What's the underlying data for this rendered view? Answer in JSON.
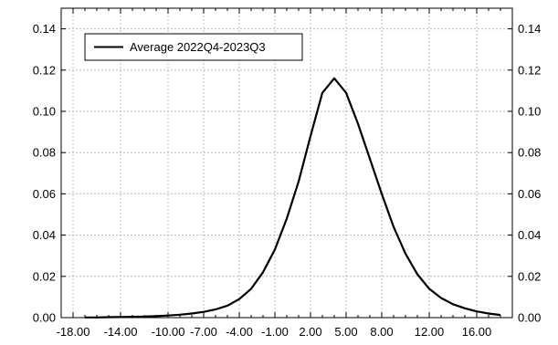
{
  "chart_data": {
    "type": "line",
    "series": [
      {
        "name": "Average 2022Q4-2023Q3",
        "color": "#000000",
        "x": [
          -17.0,
          -16.0,
          -15.0,
          -14.0,
          -13.0,
          -12.0,
          -11.0,
          -10.0,
          -9.0,
          -8.0,
          -7.0,
          -6.0,
          -5.0,
          -4.0,
          -3.0,
          -2.0,
          -1.0,
          0.0,
          1.0,
          2.0,
          3.0,
          4.0,
          5.0,
          6.0,
          7.0,
          8.0,
          9.0,
          10.0,
          11.0,
          12.0,
          13.0,
          14.0,
          15.0,
          16.0,
          17.0,
          18.0
        ],
        "values": [
          0.0001,
          0.0001,
          0.0002,
          0.0003,
          0.0004,
          0.0005,
          0.0007,
          0.001,
          0.0014,
          0.002,
          0.0028,
          0.004,
          0.0058,
          0.009,
          0.014,
          0.022,
          0.033,
          0.048,
          0.066,
          0.088,
          0.109,
          0.116,
          0.109,
          0.094,
          0.077,
          0.06,
          0.044,
          0.031,
          0.021,
          0.014,
          0.0095,
          0.0065,
          0.0045,
          0.003,
          0.002,
          0.0013
        ]
      }
    ],
    "xlim": [
      -19.0,
      19.0
    ],
    "ylim": [
      0.0,
      0.15
    ],
    "x_ticks": [
      -18.0,
      -14.0,
      -10.0,
      -7.0,
      -4.0,
      -1.0,
      2.0,
      5.0,
      8.0,
      12.0,
      16.0
    ],
    "x_tick_labels": [
      "-18.00",
      "-14.00",
      "-10.00",
      "-7.00",
      "-4.00",
      "-1.00",
      "2.00",
      "5.00",
      "8.00",
      "12.00",
      "16.00"
    ],
    "x_minor_ticks": [
      -18,
      -17,
      -16,
      -15,
      -14,
      -13,
      -12,
      -11,
      -10,
      -9,
      -8,
      -7,
      -6,
      -5,
      -4,
      -3,
      -2,
      -1,
      0,
      1,
      2,
      3,
      4,
      5,
      6,
      7,
      8,
      9,
      10,
      11,
      12,
      13,
      14,
      15,
      16,
      17,
      18
    ],
    "y_ticks": [
      0.0,
      0.02,
      0.04,
      0.06,
      0.08,
      0.1,
      0.12,
      0.14
    ],
    "y_tick_labels": [
      "0.00",
      "0.02",
      "0.04",
      "0.06",
      "0.08",
      "0.10",
      "0.12",
      "0.14"
    ],
    "grid": true,
    "legend": "top-left",
    "title": "",
    "xlabel": "",
    "ylabel": ""
  }
}
